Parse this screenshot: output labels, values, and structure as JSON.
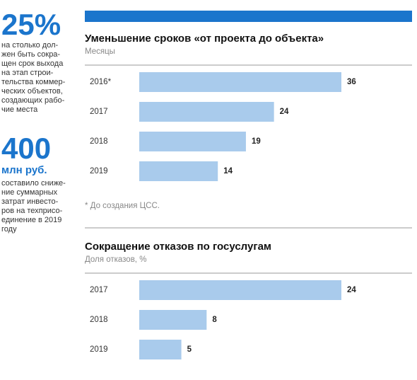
{
  "sidebar": {
    "stat1": "25%",
    "stat1_text": [
      "на столько дол-",
      "жен быть сокра-",
      "щен срок выхода",
      "на этап строи-",
      "тельства коммер-",
      "ческих объектов,",
      "создающих рабо-",
      "чие места"
    ],
    "stat2": "400",
    "stat2_unit": "млн руб.",
    "stat2_text": [
      "составило сниже-",
      "ние суммарных",
      "затрат инвесто-",
      "ров на техприсо-",
      "единение в 2019",
      "году"
    ]
  },
  "chart_data": [
    {
      "type": "bar",
      "horizontal": true,
      "title": "Уменьшение сроков «от проекта до объекта»",
      "subtitle": "Месяцы",
      "categories": [
        "2016*",
        "2017",
        "2018",
        "2019"
      ],
      "values": [
        36,
        24,
        19,
        14
      ],
      "color": "#a9cbec",
      "xlim": [
        0,
        36
      ],
      "note": "* До создания ЦСС."
    },
    {
      "type": "bar",
      "horizontal": true,
      "title": "Сокращение отказов по госуслугам",
      "subtitle": "Доля отказов, %",
      "categories": [
        "2017",
        "2018",
        "2019"
      ],
      "values": [
        24,
        8,
        5
      ],
      "color": "#a9cbec",
      "xlim": [
        0,
        24
      ]
    }
  ]
}
